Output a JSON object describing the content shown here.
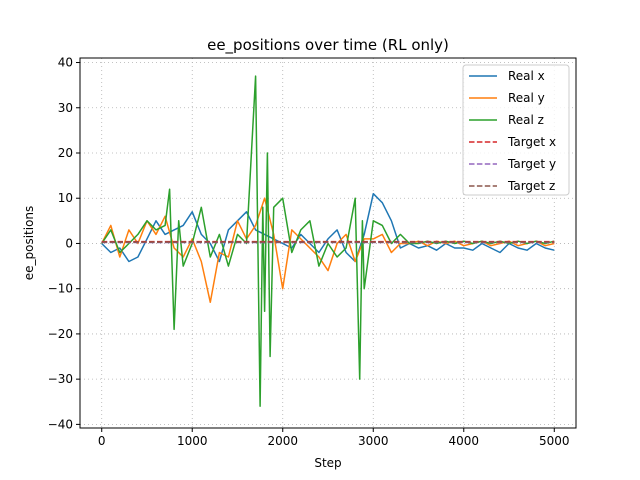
{
  "chart_data": {
    "type": "line",
    "title": "ee_positions over time (RL only)",
    "xlabel": "Step",
    "ylabel": "ee_positions",
    "xlim": [
      -240,
      5240
    ],
    "ylim": [
      -40.8,
      41
    ],
    "xticks": [
      0,
      1000,
      2000,
      3000,
      4000,
      5000
    ],
    "yticks": [
      -40,
      -30,
      -20,
      -10,
      0,
      10,
      20,
      30,
      40
    ],
    "grid": true,
    "legend_position": "top-right",
    "series": [
      {
        "name": "Real x",
        "color": "#1f77b4",
        "style": "solid",
        "x": [
          0,
          100,
          200,
          300,
          400,
          500,
          600,
          700,
          800,
          900,
          1000,
          1100,
          1200,
          1300,
          1400,
          1500,
          1600,
          1700,
          1800,
          1900,
          2000,
          2100,
          2200,
          2300,
          2400,
          2500,
          2600,
          2700,
          2800,
          2900,
          3000,
          3100,
          3200,
          3300,
          3400,
          3500,
          3600,
          3700,
          3800,
          3900,
          4000,
          4100,
          4200,
          4300,
          4400,
          4500,
          4600,
          4700,
          4800,
          4900,
          5000
        ],
        "values": [
          0,
          -2,
          -1,
          -4,
          -3,
          1,
          5,
          2,
          3,
          4,
          7,
          2,
          0,
          -4,
          3,
          5,
          7,
          3,
          2,
          1,
          0,
          -1,
          2,
          0,
          -2,
          1,
          3,
          -2,
          -4,
          2,
          11,
          9,
          5,
          -1,
          0,
          -1,
          -0.5,
          -1.5,
          0,
          -1,
          -1,
          -1.5,
          0,
          -1,
          -2,
          0,
          -1,
          -1.5,
          0,
          -1,
          -1.5
        ]
      },
      {
        "name": "Real y",
        "color": "#ff7f0e",
        "style": "solid",
        "x": [
          0,
          100,
          200,
          300,
          400,
          500,
          600,
          700,
          800,
          900,
          1000,
          1100,
          1200,
          1300,
          1400,
          1500,
          1600,
          1700,
          1800,
          1900,
          2000,
          2100,
          2200,
          2300,
          2400,
          2500,
          2600,
          2700,
          2800,
          2900,
          3000,
          3100,
          3200,
          3300,
          3400,
          3500,
          3600,
          3700,
          3800,
          3900,
          4000,
          4100,
          4200,
          4300,
          4400,
          4500,
          4600,
          4700,
          4800,
          4900,
          5000
        ],
        "values": [
          0,
          4,
          -3,
          3,
          0,
          5,
          2,
          6,
          -1,
          -3,
          1,
          -4,
          -13,
          -2,
          -3,
          5,
          1,
          4,
          10,
          2,
          -10,
          3,
          1,
          -1,
          -3,
          -6,
          0,
          2,
          -4,
          1,
          1,
          2,
          -2,
          0,
          0,
          0.5,
          -0.5,
          0.5,
          0,
          0.5,
          -0.5,
          0,
          0.5,
          -0.5,
          0,
          0.5,
          -0.5,
          0,
          0.5,
          -0.5,
          0
        ]
      },
      {
        "name": "Real z",
        "color": "#2ca02c",
        "style": "solid",
        "x": [
          0,
          100,
          200,
          300,
          400,
          500,
          600,
          700,
          750,
          800,
          850,
          900,
          1000,
          1100,
          1200,
          1300,
          1400,
          1500,
          1600,
          1700,
          1750,
          1780,
          1800,
          1830,
          1860,
          1900,
          2000,
          2100,
          2200,
          2300,
          2400,
          2500,
          2600,
          2700,
          2800,
          2850,
          2880,
          2900,
          3000,
          3100,
          3200,
          3300,
          3400,
          3500,
          3600,
          3700,
          3800,
          3900,
          4000,
          4100,
          4200,
          4300,
          4400,
          4500,
          4600,
          4700,
          4800,
          4900,
          5000
        ],
        "values": [
          0,
          3,
          -2,
          0,
          2,
          5,
          3,
          4,
          12,
          -19,
          5,
          -5,
          0,
          8,
          -3,
          2,
          -5,
          2,
          0,
          37,
          -36,
          8,
          -15,
          20,
          -25,
          8,
          10,
          -2,
          3,
          5,
          -5,
          0,
          -3,
          -1,
          10,
          -30,
          5,
          -10,
          5,
          4,
          0,
          2,
          0,
          0,
          0.5,
          0,
          0.5,
          0,
          0.5,
          0,
          0.5,
          0,
          0.5,
          0,
          0.5,
          0,
          0.5,
          0,
          0.5
        ]
      },
      {
        "name": "Target x",
        "color": "#d62728",
        "style": "dashed",
        "x": [
          0,
          5000
        ],
        "values": [
          0.4,
          0.4
        ]
      },
      {
        "name": "Target y",
        "color": "#9467bd",
        "style": "dashed",
        "x": [
          0,
          5000
        ],
        "values": [
          0.2,
          0.2
        ]
      },
      {
        "name": "Target z",
        "color": "#8c564b",
        "style": "dashed",
        "x": [
          0,
          5000
        ],
        "values": [
          0.3,
          0.3
        ]
      }
    ]
  }
}
